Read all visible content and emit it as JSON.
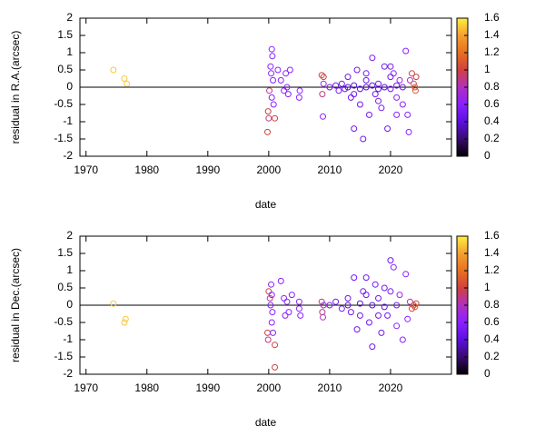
{
  "chart_data": [
    {
      "type": "scatter",
      "xlabel": "date",
      "ylabel": "residual in R.A.(arcsec)",
      "x": [
        1974.5,
        1976.3,
        1976.7,
        1999.8,
        1999.9,
        2000.0,
        2000.1,
        2000.5,
        2000.6,
        2000.4,
        2000.7,
        2000.5,
        2000.8,
        2000.3,
        2001.0,
        2001.5,
        2002.0,
        2002.5,
        2002.8,
        2003.0,
        2003.5,
        2003.2,
        2005.0,
        2005.1,
        2008.7,
        2009.0,
        2008.8,
        2008.9,
        2009.0,
        2010.0,
        2011.0,
        2011.5,
        2012.0,
        2012.5,
        2013.0,
        2013.5,
        2014.0,
        2014.5,
        2015.0,
        2015.5,
        2016.0,
        2016.5,
        2017.0,
        2017.5,
        2018.0,
        2018.5,
        2019.0,
        2019.5,
        2020.0,
        2020.5,
        2021.0,
        2021.5,
        2022.0,
        2022.5,
        2022.8,
        2023.0,
        2023.2,
        2023.5,
        2023.8,
        2024.0,
        2024.1,
        2024.2,
        2013.0,
        2014.0,
        2015.0,
        2016.0,
        2017.0,
        2018.0,
        2019.0,
        2020.0,
        2021.0,
        2022.0,
        2014.0,
        2016.0,
        2018.0,
        2020.0,
        2021.0
      ],
      "y": [
        0.5,
        0.25,
        0.1,
        -1.3,
        -0.7,
        -0.9,
        -0.1,
        1.1,
        0.9,
        0.4,
        0.2,
        -0.3,
        -0.5,
        0.6,
        -0.9,
        0.5,
        0.2,
        -0.1,
        0.4,
        0.0,
        0.5,
        -0.2,
        -0.3,
        -0.1,
        0.35,
        0.3,
        -0.2,
        -0.85,
        0.1,
        0.0,
        0.05,
        -0.1,
        0.1,
        -0.05,
        0.3,
        -0.3,
        -1.2,
        0.5,
        -0.5,
        -1.5,
        0.2,
        -0.8,
        0.85,
        -0.2,
        0.1,
        -0.6,
        0.6,
        -1.2,
        0.3,
        0.4,
        -0.3,
        0.2,
        -0.5,
        1.05,
        -0.8,
        -1.3,
        0.2,
        0.4,
        0.1,
        0.0,
        -0.1,
        0.3,
        0.0,
        0.05,
        -0.05,
        0.0,
        0.05,
        -0.05,
        0.0,
        -0.05,
        0.05,
        0.0,
        -0.2,
        0.4,
        -0.4,
        0.6,
        -0.8
      ],
      "c": [
        1.5,
        1.5,
        1.5,
        1.0,
        1.0,
        0.9,
        0.9,
        0.6,
        0.6,
        0.6,
        0.6,
        0.6,
        0.6,
        0.6,
        1.0,
        0.6,
        0.6,
        0.6,
        0.6,
        0.6,
        0.6,
        0.6,
        0.6,
        0.6,
        1.0,
        1.0,
        0.9,
        0.6,
        0.7,
        0.5,
        0.5,
        0.5,
        0.5,
        0.5,
        0.5,
        0.5,
        0.5,
        0.5,
        0.5,
        0.5,
        0.5,
        0.5,
        0.5,
        0.5,
        0.5,
        0.5,
        0.5,
        0.5,
        0.5,
        0.6,
        0.6,
        0.7,
        0.6,
        0.6,
        0.6,
        0.6,
        0.8,
        1.0,
        1.1,
        1.1,
        1.1,
        1.0,
        0.4,
        0.4,
        0.4,
        0.4,
        0.4,
        0.4,
        0.4,
        0.5,
        0.5,
        0.5,
        0.5,
        0.5,
        0.5,
        0.5,
        0.6
      ],
      "xlim": [
        1969,
        2030
      ],
      "xticks": [
        1970,
        1980,
        1990,
        2000,
        2010,
        2020
      ],
      "ylim": [
        -2,
        2
      ],
      "yticks": [
        -2,
        -1.5,
        -1,
        -0.5,
        0,
        0.5,
        1,
        1.5,
        2
      ],
      "zero_line": true,
      "colorbar": {
        "clim": [
          0,
          1.6
        ],
        "cticks": [
          0,
          0.2,
          0.4,
          0.6,
          0.8,
          1,
          1.2,
          1.4,
          1.6
        ],
        "colors": [
          "#000000",
          "#3a0a70",
          "#5a10e0",
          "#8a20ff",
          "#b030c0",
          "#d04040",
          "#e87020",
          "#f4a030",
          "#ffee40"
        ]
      }
    },
    {
      "type": "scatter",
      "xlabel": "date",
      "ylabel": "residual in Dec.(arcsec)",
      "x": [
        1974.5,
        1976.5,
        1976.3,
        1999.8,
        1999.9,
        2000.0,
        2000.2,
        2000.4,
        2000.5,
        2000.6,
        2000.5,
        2000.7,
        2000.3,
        2001.0,
        2001.0,
        2002.0,
        2002.5,
        2002.7,
        2003.0,
        2003.3,
        2003.8,
        2005.0,
        2005.0,
        2005.2,
        2008.7,
        2008.8,
        2008.9,
        2009.0,
        2010.0,
        2011.0,
        2012.0,
        2013.0,
        2013.5,
        2014.0,
        2014.5,
        2015.0,
        2015.5,
        2016.0,
        2016.5,
        2017.0,
        2017.5,
        2018.0,
        2018.5,
        2019.0,
        2019.5,
        2020.0,
        2020.5,
        2021.0,
        2021.5,
        2022.0,
        2022.5,
        2022.8,
        2023.2,
        2023.5,
        2023.8,
        2024.0,
        2024.2,
        2013.0,
        2015.0,
        2017.0,
        2019.0,
        2021.0,
        2016.0,
        2018.0,
        2020.0
      ],
      "y": [
        0.05,
        -0.4,
        -0.5,
        -0.8,
        -1.0,
        0.4,
        0.2,
        0.6,
        0.3,
        -0.2,
        -0.5,
        -0.8,
        0.0,
        -1.15,
        -1.8,
        0.7,
        0.2,
        -0.3,
        0.1,
        -0.2,
        0.3,
        0.1,
        -0.1,
        -0.3,
        0.1,
        -0.2,
        -0.35,
        0.0,
        0.0,
        0.1,
        -0.1,
        0.2,
        -0.2,
        0.8,
        -0.7,
        -0.3,
        0.4,
        0.8,
        -0.5,
        -1.2,
        0.6,
        0.2,
        -0.8,
        0.5,
        -0.3,
        1.3,
        1.1,
        -0.6,
        0.3,
        -1.0,
        0.9,
        -0.4,
        0.1,
        -0.1,
        0.0,
        -0.05,
        0.05,
        0.0,
        0.05,
        0.0,
        -0.05,
        0.0,
        0.3,
        -0.3,
        0.4
      ],
      "c": [
        1.5,
        1.5,
        1.5,
        1.0,
        0.9,
        1.0,
        0.9,
        0.6,
        0.6,
        0.6,
        0.6,
        0.6,
        0.6,
        1.0,
        1.0,
        0.6,
        0.6,
        0.6,
        0.6,
        0.6,
        0.6,
        0.6,
        0.6,
        0.6,
        0.9,
        0.9,
        0.8,
        0.7,
        0.5,
        0.5,
        0.5,
        0.5,
        0.5,
        0.5,
        0.5,
        0.5,
        0.5,
        0.5,
        0.5,
        0.5,
        0.5,
        0.5,
        0.5,
        0.5,
        0.5,
        0.5,
        0.6,
        0.6,
        0.7,
        0.6,
        0.6,
        0.6,
        0.8,
        1.0,
        1.1,
        1.1,
        1.0,
        0.4,
        0.4,
        0.4,
        0.4,
        0.5,
        0.5,
        0.5,
        0.5
      ],
      "xlim": [
        1969,
        2030
      ],
      "xticks": [
        1970,
        1980,
        1990,
        2000,
        2010,
        2020
      ],
      "ylim": [
        -2,
        2
      ],
      "yticks": [
        -2,
        -1.5,
        -1,
        -0.5,
        0,
        0.5,
        1,
        1.5,
        2
      ],
      "zero_line": true,
      "colorbar": {
        "clim": [
          0,
          1.6
        ],
        "cticks": [
          0,
          0.2,
          0.4,
          0.6,
          0.8,
          1,
          1.2,
          1.4,
          1.6
        ],
        "colors": [
          "#000000",
          "#3a0a70",
          "#5a10e0",
          "#8a20ff",
          "#b030c0",
          "#d04040",
          "#e87020",
          "#f4a030",
          "#ffee40"
        ]
      }
    }
  ]
}
